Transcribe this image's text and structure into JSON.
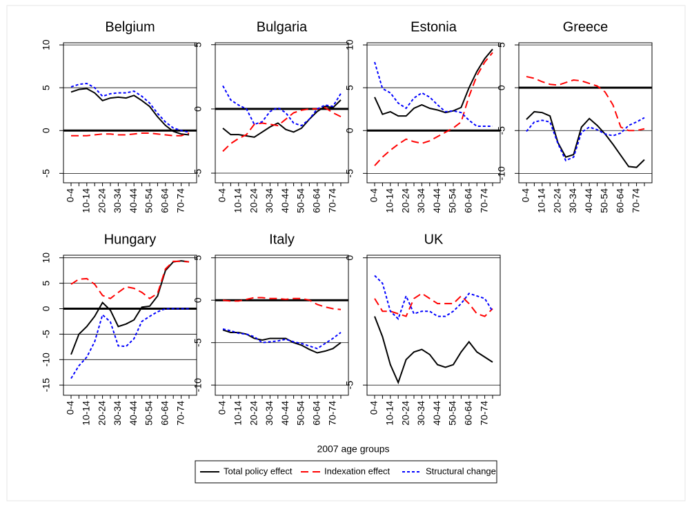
{
  "chart_data": [
    {
      "type": "line",
      "title": "Belgium",
      "categories": [
        "0-4",
        null,
        "10-14",
        null,
        "20-24",
        null,
        "30-34",
        null,
        "40-44",
        null,
        "50-54",
        null,
        "60-64",
        null,
        "70-74",
        null
      ],
      "ylim": [
        -6.1,
        10.25
      ],
      "yticks": [
        -5,
        0,
        5,
        10
      ],
      "grid": true,
      "zero_line": true,
      "series": [
        {
          "name": "Total policy effect",
          "color": "#000000",
          "dash": "solid",
          "values": [
            4.5,
            4.8,
            4.9,
            4.4,
            3.5,
            3.8,
            3.9,
            3.8,
            4.1,
            3.5,
            2.8,
            1.6,
            0.6,
            -0.1,
            -0.4,
            -0.5
          ]
        },
        {
          "name": "Indexation effect",
          "color": "#ff0000",
          "dash": "dash",
          "values": [
            -0.6,
            -0.6,
            -0.6,
            -0.5,
            -0.4,
            -0.4,
            -0.5,
            -0.5,
            -0.4,
            -0.3,
            -0.3,
            -0.4,
            -0.5,
            -0.6,
            -0.6,
            -0.3
          ]
        },
        {
          "name": "Structural change",
          "color": "#0000ff",
          "dash": "dot",
          "values": [
            5.1,
            5.4,
            5.5,
            5.0,
            4.0,
            4.3,
            4.4,
            4.4,
            4.6,
            4.0,
            3.2,
            2.0,
            1.0,
            0.3,
            0.0,
            -0.2
          ]
        }
      ]
    },
    {
      "type": "line",
      "title": "Bulgaria",
      "categories": [
        "0-4",
        null,
        "10-14",
        null,
        "20-24",
        null,
        "30-34",
        null,
        "40-44",
        null,
        "50-54",
        null,
        "60-64",
        null,
        "70-74",
        null
      ],
      "ylim": [
        -5.75,
        5.15
      ],
      "yticks": [
        -5,
        0,
        5
      ],
      "grid": true,
      "zero_line": true,
      "series": [
        {
          "name": "Total policy effect",
          "color": "#000000",
          "dash": "solid",
          "values": [
            -1.5,
            -2.0,
            -2.0,
            -2.1,
            -2.2,
            -1.8,
            -1.4,
            -1.1,
            -1.6,
            -1.8,
            -1.5,
            -0.8,
            -0.2,
            0.2,
            0.1,
            0.7
          ]
        },
        {
          "name": "Indexation effect",
          "color": "#ff0000",
          "dash": "dash",
          "values": [
            -3.3,
            -2.7,
            -2.3,
            -2.0,
            -1.2,
            -1.1,
            -1.2,
            -1.3,
            -0.8,
            -0.3,
            -0.1,
            0.0,
            0.0,
            0.1,
            -0.3,
            -0.6
          ]
        },
        {
          "name": "Structural change",
          "color": "#0000ff",
          "dash": "dot",
          "values": [
            1.8,
            0.7,
            0.3,
            0.0,
            -1.2,
            -1.0,
            -0.2,
            0.1,
            -0.3,
            -1.1,
            -1.3,
            -0.8,
            0.0,
            0.3,
            0.2,
            1.2
          ]
        }
      ]
    },
    {
      "type": "line",
      "title": "Estonia",
      "categories": [
        "0-4",
        null,
        "10-14",
        null,
        "20-24",
        null,
        "30-34",
        null,
        "40-44",
        null,
        "50-54",
        null,
        "60-64",
        null,
        "70-74",
        null
      ],
      "ylim": [
        -6.1,
        10.25
      ],
      "yticks": [
        -5,
        0,
        5,
        10
      ],
      "grid": true,
      "zero_line": true,
      "series": [
        {
          "name": "Total policy effect",
          "color": "#000000",
          "dash": "solid",
          "values": [
            3.9,
            1.9,
            2.2,
            1.7,
            1.7,
            2.6,
            3.0,
            2.6,
            2.4,
            2.1,
            2.3,
            2.7,
            5.0,
            6.9,
            8.4,
            9.5
          ]
        },
        {
          "name": "Indexation effect",
          "color": "#ff0000",
          "dash": "dash",
          "values": [
            -4.1,
            -3.1,
            -2.3,
            -1.6,
            -1.0,
            -1.3,
            -1.5,
            -1.2,
            -0.7,
            -0.2,
            0.3,
            1.0,
            4.0,
            6.4,
            8.0,
            9.1
          ]
        },
        {
          "name": "Structural change",
          "color": "#0000ff",
          "dash": "dot",
          "values": [
            8.0,
            4.9,
            4.4,
            3.2,
            2.6,
            3.8,
            4.4,
            3.9,
            3.0,
            2.2,
            2.3,
            2.1,
            1.2,
            0.5,
            0.5,
            0.5
          ]
        }
      ]
    },
    {
      "type": "line",
      "title": "Greece",
      "categories": [
        "0-4",
        null,
        "10-14",
        null,
        "20-24",
        null,
        "30-34",
        null,
        "40-44",
        null,
        "50-54",
        null,
        "60-64",
        null,
        "70-74",
        null
      ],
      "ylim": [
        -11.1,
        5.25
      ],
      "yticks": [
        -10,
        -5,
        0,
        5
      ],
      "grid": true,
      "zero_line": true,
      "series": [
        {
          "name": "Total policy effect",
          "color": "#000000",
          "dash": "solid",
          "values": [
            -3.7,
            -2.8,
            -2.9,
            -3.3,
            -6.4,
            -8.1,
            -7.8,
            -4.6,
            -3.6,
            -4.4,
            -5.4,
            -6.6,
            -7.9,
            -9.2,
            -9.3,
            -8.4
          ]
        },
        {
          "name": "Indexation effect",
          "color": "#ff0000",
          "dash": "dash",
          "values": [
            1.3,
            1.1,
            0.7,
            0.4,
            0.3,
            0.6,
            0.9,
            0.8,
            0.5,
            0.2,
            -0.5,
            -2.0,
            -4.6,
            -5.0,
            -5.0,
            -4.8
          ]
        },
        {
          "name": "Structural change",
          "color": "#0000ff",
          "dash": "dot",
          "values": [
            -5.1,
            -4.0,
            -3.8,
            -4.0,
            -6.5,
            -8.5,
            -8.1,
            -5.2,
            -4.6,
            -4.9,
            -5.4,
            -5.6,
            -5.3,
            -4.4,
            -4.0,
            -3.5
          ]
        }
      ]
    },
    {
      "type": "line",
      "title": "Hungary",
      "categories": [
        "0-4",
        null,
        "10-14",
        null,
        "20-24",
        null,
        "30-34",
        null,
        "40-44",
        null,
        "50-54",
        null,
        "60-64",
        null,
        "70-74",
        null
      ],
      "ylim": [
        -17,
        10.5
      ],
      "yticks": [
        -15,
        -10,
        -5,
        0,
        5,
        10
      ],
      "grid": true,
      "zero_line": true,
      "series": [
        {
          "name": "Total policy effect",
          "color": "#000000",
          "dash": "solid",
          "values": [
            -9.0,
            -5.0,
            -3.5,
            -1.5,
            1.2,
            -0.3,
            -3.5,
            -3.0,
            -2.2,
            0.3,
            0.5,
            2.5,
            7.5,
            9.2,
            9.4,
            9.2
          ]
        },
        {
          "name": "Indexation effect",
          "color": "#ff0000",
          "dash": "dash",
          "values": [
            4.8,
            5.8,
            5.9,
            4.8,
            2.6,
            2.0,
            3.2,
            4.3,
            4.0,
            3.2,
            2.0,
            3.0,
            7.8,
            9.3,
            9.3,
            9.2
          ]
        },
        {
          "name": "Structural change",
          "color": "#0000ff",
          "dash": "dot",
          "values": [
            -13.7,
            -11.2,
            -9.5,
            -6.5,
            -1.2,
            -2.6,
            -7.3,
            -7.4,
            -5.9,
            -2.5,
            -1.5,
            -0.6,
            0.0,
            0.0,
            0.0,
            0.0
          ]
        }
      ]
    },
    {
      "type": "line",
      "title": "Italy",
      "categories": [
        "0-4",
        null,
        "10-14",
        null,
        "20-24",
        null,
        "30-34",
        null,
        "40-44",
        null,
        "50-54",
        null,
        "60-64",
        null,
        "70-74",
        null
      ],
      "ylim": [
        -11.2,
        5.3
      ],
      "yticks": [
        -10,
        -5,
        0,
        5
      ],
      "grid": true,
      "zero_line": true,
      "series": [
        {
          "name": "Total policy effect",
          "color": "#000000",
          "dash": "solid",
          "values": [
            -3.5,
            -3.8,
            -3.8,
            -4.0,
            -4.5,
            -4.7,
            -4.5,
            -4.5,
            -4.5,
            -5.0,
            -5.3,
            -5.8,
            -6.2,
            -6.0,
            -5.7,
            -5.0
          ]
        },
        {
          "name": "Indexation effect",
          "color": "#ff0000",
          "dash": "dash",
          "values": [
            0.0,
            -0.1,
            -0.1,
            0.1,
            0.3,
            0.3,
            0.2,
            0.2,
            0.1,
            0.2,
            0.2,
            0.0,
            -0.5,
            -0.8,
            -1.0,
            -1.1
          ]
        },
        {
          "name": "Structural change",
          "color": "#0000ff",
          "dash": "dot",
          "values": [
            -3.4,
            -3.6,
            -3.9,
            -4.0,
            -4.3,
            -5.0,
            -4.9,
            -4.8,
            -4.6,
            -4.9,
            -5.1,
            -5.4,
            -5.7,
            -5.1,
            -4.5,
            -3.8
          ]
        }
      ]
    },
    {
      "type": "line",
      "title": "UK",
      "categories": [
        "0-4",
        null,
        "10-14",
        null,
        "20-24",
        null,
        "30-34",
        null,
        "40-44",
        null,
        "50-54",
        null,
        "60-64",
        null,
        "70-74",
        null
      ],
      "ylim": [
        -5.4,
        0.1
      ],
      "yticks": [
        -5,
        0
      ],
      "grid": true,
      "zero_line": false,
      "series": [
        {
          "name": "Total policy effect",
          "color": "#000000",
          "dash": "solid",
          "values": [
            -2.3,
            -3.1,
            -4.2,
            -4.9,
            -4.0,
            -3.7,
            -3.6,
            -3.8,
            -4.2,
            -4.3,
            -4.2,
            -3.7,
            -3.3,
            -3.7,
            -3.9,
            -4.1
          ]
        },
        {
          "name": "Indexation effect",
          "color": "#ff0000",
          "dash": "dash",
          "values": [
            -1.6,
            -2.1,
            -2.1,
            -2.2,
            -2.3,
            -1.6,
            -1.4,
            -1.6,
            -1.8,
            -1.8,
            -1.8,
            -1.5,
            -1.8,
            -2.2,
            -2.3,
            -2.0
          ]
        },
        {
          "name": "Structural change",
          "color": "#0000ff",
          "dash": "dot",
          "values": [
            -0.7,
            -1.0,
            -2.1,
            -2.4,
            -1.5,
            -2.2,
            -2.1,
            -2.1,
            -2.3,
            -2.3,
            -2.1,
            -1.8,
            -1.4,
            -1.5,
            -1.6,
            -2.1
          ]
        }
      ]
    }
  ],
  "xlabel": "2007 age groups"
}
